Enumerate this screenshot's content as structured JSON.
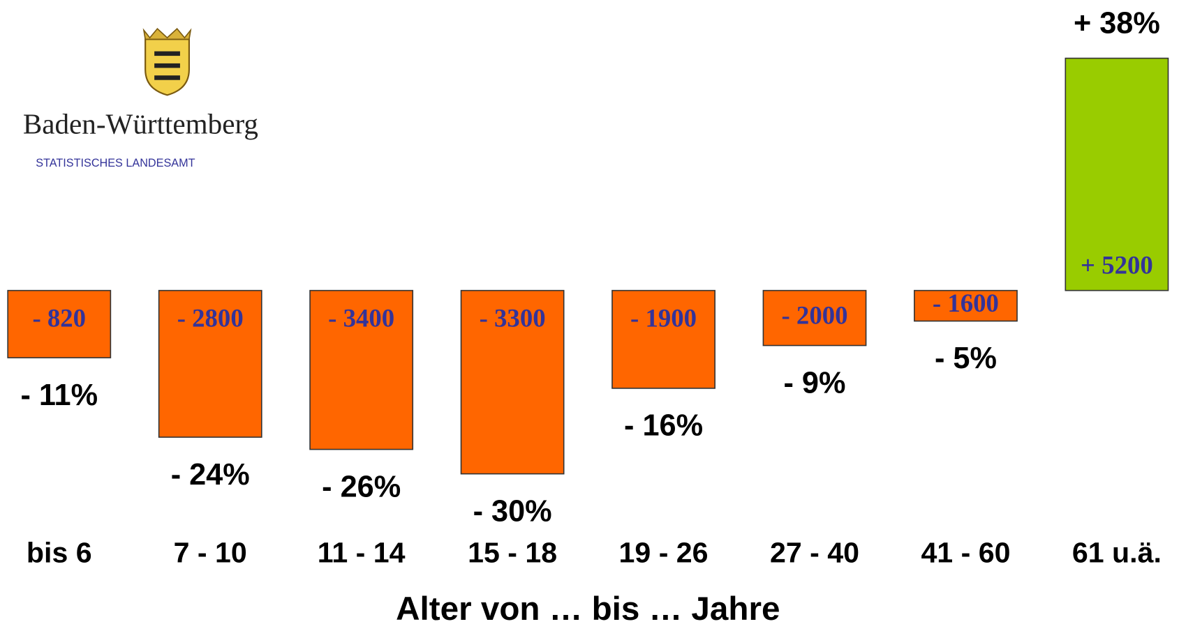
{
  "logo": {
    "title": "Baden-Württemberg",
    "subtitle": "STATISTISCHES LANDESAMT"
  },
  "chart_data": {
    "type": "bar",
    "x_label": "Alter von … bis … Jahre",
    "categories": [
      "bis 6",
      "7 - 10",
      "11 - 14",
      "15 - 18",
      "19 - 26",
      "27 - 40",
      "41 - 60",
      "61 u.ä."
    ],
    "values": [
      -11,
      -24,
      -26,
      -30,
      -16,
      -9,
      -5,
      38
    ],
    "value_labels": [
      "- 11%",
      "- 24%",
      "- 26%",
      "- 30%",
      "- 16%",
      "- 9%",
      "- 5%",
      "+ 38%"
    ],
    "count_labels": [
      "- 820",
      "- 2800",
      "- 3400",
      "- 3300",
      "- 1900",
      "- 2000",
      "- 1600",
      "+ 5200"
    ],
    "colors": [
      "#ff6600",
      "#ff6600",
      "#ff6600",
      "#ff6600",
      "#ff6600",
      "#ff6600",
      "#ff6600",
      "#99cc00"
    ]
  }
}
